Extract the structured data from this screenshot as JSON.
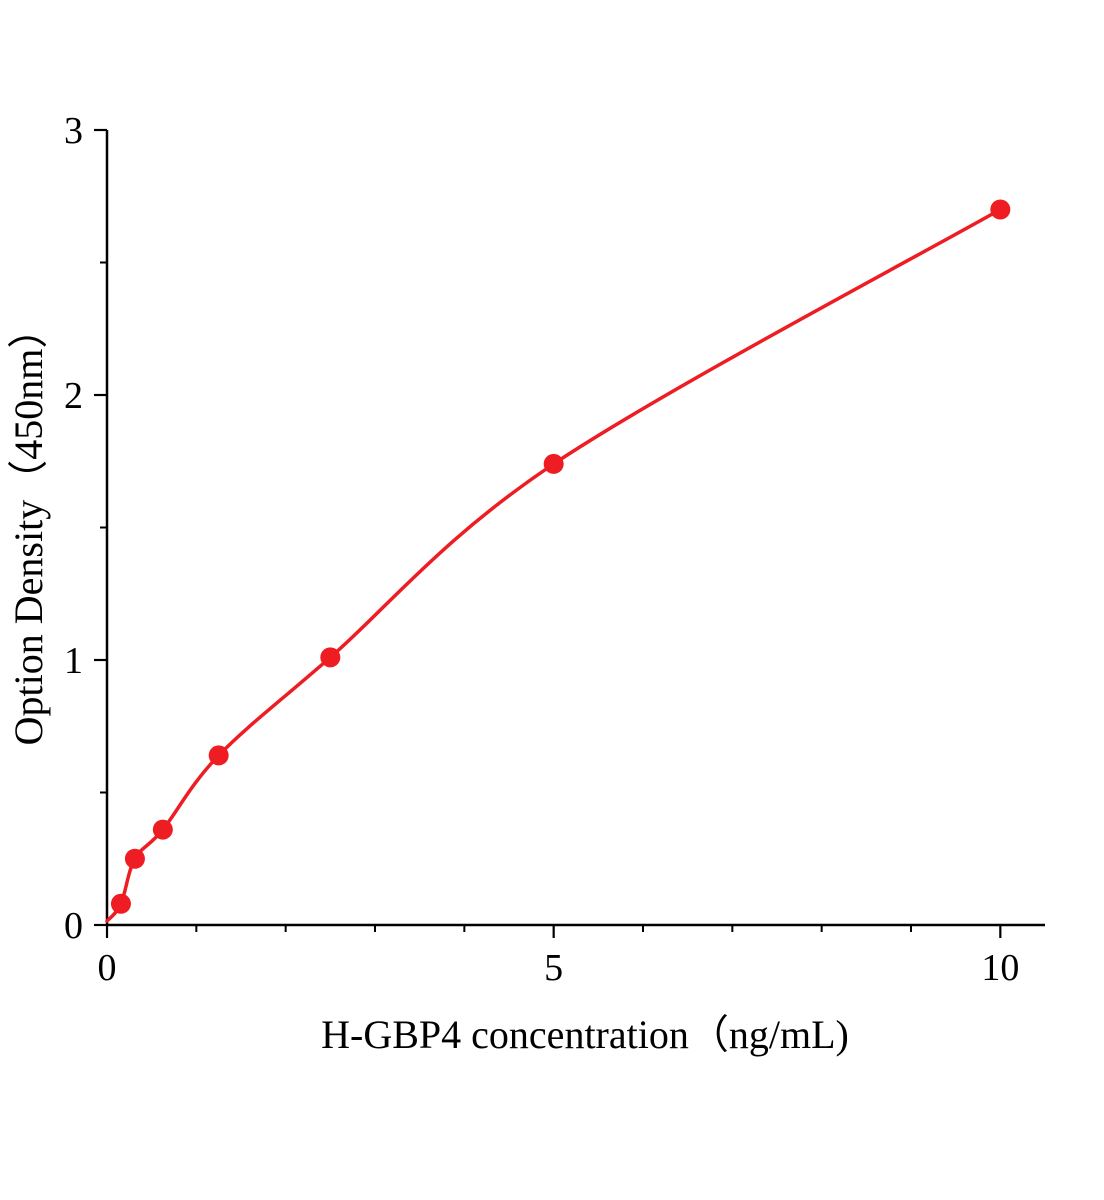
{
  "chart_data": {
    "type": "line",
    "title": "",
    "xlabel": "H-GBP4 concentration（ng/mL)",
    "ylabel": "Option Density（450nm）",
    "x": [
      0.156,
      0.3125,
      0.625,
      1.25,
      2.5,
      5,
      10
    ],
    "y": [
      0.08,
      0.25,
      0.36,
      0.64,
      1.01,
      1.74,
      2.7
    ],
    "curve_start": {
      "x": 0,
      "y": 0.015
    },
    "x_ticks": [
      0,
      5,
      10
    ],
    "y_ticks": [
      0,
      1,
      2,
      3
    ],
    "x_minor_step": 1,
    "y_minor_step": 0.5,
    "xlim": [
      0,
      10.5
    ],
    "ylim": [
      0,
      3
    ],
    "series_color": "#ee1c23",
    "axis_color": "#000000",
    "marker": "circle",
    "grid": false,
    "legend_position": "none"
  }
}
